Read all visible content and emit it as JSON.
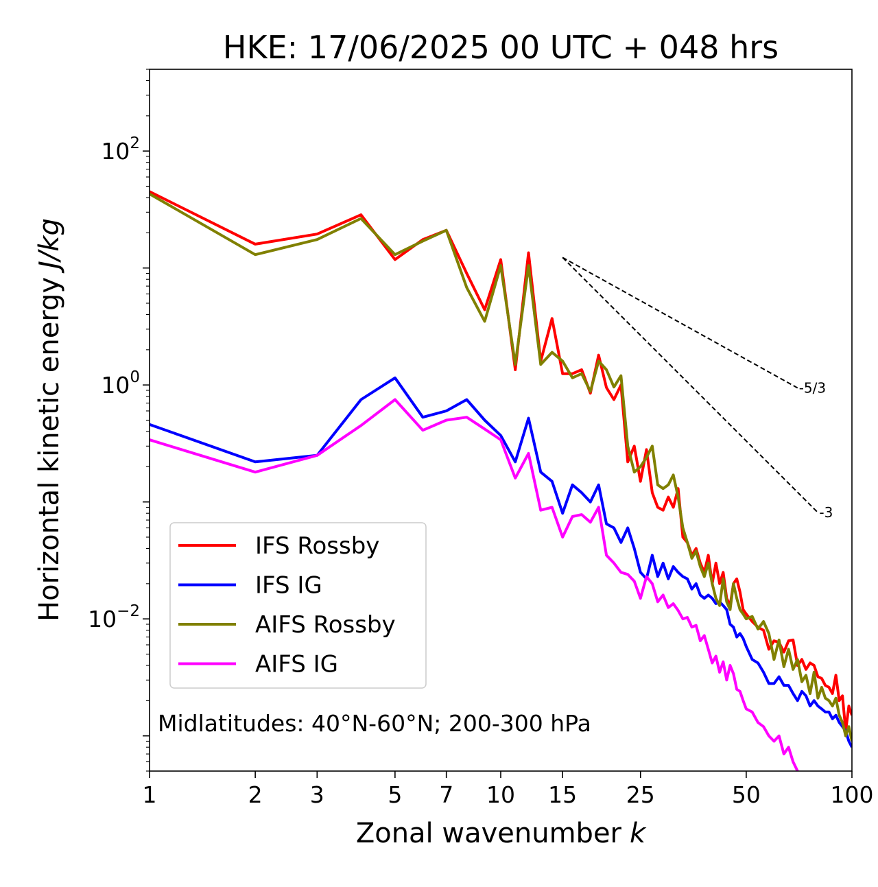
{
  "chart_data": {
    "type": "line",
    "title": "HKE: 17/06/2025 00 UTC + 048 hrs",
    "xlabel": "Zonal wavenumber",
    "xlabel_var": "k",
    "ylabel": "Horizontal kinetic energy",
    "ylabel_units": "J/kg",
    "xscale": "log",
    "yscale": "log",
    "xlim": [
      1,
      100
    ],
    "ylim": [
      0.0005,
      500
    ],
    "x_ticks": [
      1,
      2,
      3,
      5,
      7,
      10,
      15,
      25,
      50,
      100
    ],
    "x_tick_labels": [
      "1",
      "2",
      "3",
      "5",
      "7",
      "10",
      "15",
      "25",
      "50",
      "100"
    ],
    "y_ticks": [
      0.01,
      1,
      100
    ],
    "y_tick_labels": [
      {
        "base": "10",
        "exp": "−2"
      },
      {
        "base": "10",
        "exp": "0"
      },
      {
        "base": "10",
        "exp": "2"
      }
    ],
    "grid": false,
    "legend_position": "bottom-left",
    "annotation": "Midlatitudes: 40°N-60°N; 200-300 hPa",
    "reference_lines": [
      {
        "label": "-5/3",
        "slope": -1.6667,
        "x_start": 15,
        "y_start": 12.3,
        "x_end": 70
      },
      {
        "label": "-3",
        "slope": -3,
        "x_start": 15,
        "y_start": 12.3,
        "x_end": 80
      }
    ],
    "series": [
      {
        "name": "IFS Rossby",
        "color": "#ff0000",
        "x": [
          1,
          2,
          3,
          4,
          5,
          6,
          7,
          8,
          9,
          10,
          11,
          12,
          13,
          14,
          15,
          16,
          17,
          18,
          19,
          20,
          21,
          22,
          23,
          24,
          25,
          26,
          27,
          28,
          29,
          30,
          31,
          32,
          33,
          34,
          35,
          36,
          37,
          38,
          39,
          40,
          41,
          42,
          43,
          44,
          45,
          46,
          47,
          48,
          49,
          50,
          52,
          54,
          56,
          58,
          60,
          62,
          64,
          66,
          68,
          70,
          72,
          74,
          76,
          78,
          80,
          82,
          84,
          86,
          88,
          90,
          92,
          94,
          96,
          98,
          100
        ],
        "y": [
          45,
          16,
          19.5,
          28.5,
          11.8,
          17.5,
          21,
          9,
          4.4,
          11.8,
          1.35,
          13.5,
          1.6,
          3.7,
          1.25,
          1.25,
          1.35,
          0.85,
          1.8,
          0.95,
          0.75,
          1.0,
          0.22,
          0.3,
          0.15,
          0.28,
          0.12,
          0.09,
          0.085,
          0.11,
          0.09,
          0.13,
          0.05,
          0.045,
          0.035,
          0.04,
          0.03,
          0.025,
          0.035,
          0.02,
          0.03,
          0.02,
          0.025,
          0.015,
          0.013,
          0.02,
          0.022,
          0.017,
          0.012,
          0.011,
          0.0095,
          0.0085,
          0.008,
          0.0055,
          0.0065,
          0.0063,
          0.0052,
          0.0065,
          0.0066,
          0.004,
          0.0045,
          0.0037,
          0.0042,
          0.004,
          0.0032,
          0.0031,
          0.0027,
          0.0026,
          0.0023,
          0.0033,
          0.002,
          0.0022,
          0.0011,
          0.0018,
          0.0015
        ]
      },
      {
        "name": "IFS IG",
        "color": "#0000ff",
        "x": [
          1,
          2,
          3,
          4,
          5,
          6,
          7,
          8,
          9,
          10,
          11,
          12,
          13,
          14,
          15,
          16,
          17,
          18,
          19,
          20,
          21,
          22,
          23,
          24,
          25,
          26,
          27,
          28,
          29,
          30,
          31,
          32,
          33,
          34,
          35,
          36,
          37,
          38,
          39,
          40,
          41,
          42,
          43,
          44,
          45,
          46,
          47,
          48,
          49,
          50,
          52,
          54,
          56,
          58,
          60,
          62,
          64,
          66,
          68,
          70,
          72,
          74,
          76,
          78,
          80,
          82,
          84,
          86,
          88,
          90,
          92,
          94,
          96,
          98,
          100
        ],
        "y": [
          0.46,
          0.22,
          0.25,
          0.75,
          1.15,
          0.53,
          0.6,
          0.75,
          0.5,
          0.37,
          0.22,
          0.52,
          0.18,
          0.15,
          0.08,
          0.14,
          0.12,
          0.1,
          0.14,
          0.065,
          0.06,
          0.045,
          0.06,
          0.04,
          0.025,
          0.022,
          0.035,
          0.023,
          0.03,
          0.022,
          0.028,
          0.025,
          0.023,
          0.022,
          0.018,
          0.02,
          0.016,
          0.015,
          0.016,
          0.015,
          0.0135,
          0.014,
          0.013,
          0.012,
          0.009,
          0.0085,
          0.007,
          0.0075,
          0.0068,
          0.0058,
          0.0045,
          0.0042,
          0.0035,
          0.0028,
          0.0028,
          0.0032,
          0.0027,
          0.0027,
          0.0023,
          0.002,
          0.0024,
          0.0022,
          0.0018,
          0.002,
          0.0018,
          0.0017,
          0.0016,
          0.0016,
          0.0014,
          0.0015,
          0.0013,
          0.0012,
          0.0011,
          0.0009,
          0.0008
        ]
      },
      {
        "name": "AIFS Rossby",
        "color": "#808000",
        "x": [
          1,
          2,
          3,
          4,
          5,
          6,
          7,
          8,
          9,
          10,
          11,
          12,
          13,
          14,
          15,
          16,
          17,
          18,
          19,
          20,
          21,
          22,
          23,
          24,
          25,
          26,
          27,
          28,
          29,
          30,
          31,
          32,
          33,
          34,
          35,
          36,
          37,
          38,
          39,
          40,
          41,
          42,
          43,
          44,
          45,
          46,
          47,
          48,
          49,
          50,
          52,
          54,
          56,
          58,
          60,
          62,
          64,
          66,
          68,
          70,
          72,
          74,
          76,
          78,
          80,
          82,
          84,
          86,
          88,
          90,
          92,
          94,
          96,
          98,
          100
        ],
        "y": [
          43,
          13,
          17.5,
          26.5,
          13,
          17,
          21,
          6.8,
          3.5,
          10.5,
          1.5,
          10.5,
          1.5,
          1.9,
          1.6,
          1.15,
          1.25,
          0.88,
          1.6,
          1.35,
          0.96,
          1.2,
          0.3,
          0.18,
          0.2,
          0.24,
          0.3,
          0.14,
          0.13,
          0.14,
          0.17,
          0.11,
          0.06,
          0.045,
          0.033,
          0.038,
          0.028,
          0.023,
          0.03,
          0.02,
          0.015,
          0.013,
          0.022,
          0.014,
          0.012,
          0.02,
          0.015,
          0.012,
          0.011,
          0.01,
          0.0105,
          0.0082,
          0.0095,
          0.0075,
          0.0045,
          0.0066,
          0.0039,
          0.0055,
          0.0037,
          0.0045,
          0.0029,
          0.0033,
          0.0023,
          0.0035,
          0.0021,
          0.0026,
          0.0021,
          0.002,
          0.0018,
          0.0021,
          0.0015,
          0.0013,
          0.001,
          0.0012,
          0.0009
        ]
      },
      {
        "name": "AIFS IG",
        "color": "#ff00ff",
        "x": [
          1,
          2,
          3,
          4,
          5,
          6,
          7,
          8,
          9,
          10,
          11,
          12,
          13,
          14,
          15,
          16,
          17,
          18,
          19,
          20,
          21,
          22,
          23,
          24,
          25,
          26,
          27,
          28,
          29,
          30,
          31,
          32,
          33,
          34,
          35,
          36,
          37,
          38,
          39,
          40,
          41,
          42,
          43,
          44,
          45,
          46,
          47,
          48,
          49,
          50,
          52,
          54,
          56,
          58,
          60,
          62,
          64,
          66,
          68,
          70,
          72
        ],
        "y": [
          0.34,
          0.18,
          0.25,
          0.45,
          0.75,
          0.41,
          0.5,
          0.53,
          0.42,
          0.34,
          0.16,
          0.26,
          0.085,
          0.09,
          0.05,
          0.075,
          0.078,
          0.067,
          0.09,
          0.035,
          0.03,
          0.025,
          0.024,
          0.021,
          0.015,
          0.023,
          0.02,
          0.014,
          0.016,
          0.0125,
          0.0135,
          0.0118,
          0.01,
          0.0103,
          0.0085,
          0.0088,
          0.0065,
          0.0072,
          0.0055,
          0.0042,
          0.0048,
          0.0035,
          0.0043,
          0.003,
          0.004,
          0.0034,
          0.0025,
          0.0024,
          0.002,
          0.0017,
          0.0016,
          0.0013,
          0.0012,
          0.001,
          0.0009,
          0.001,
          0.0007,
          0.0008,
          0.0006,
          0.0005,
          0.0004
        ]
      }
    ]
  }
}
